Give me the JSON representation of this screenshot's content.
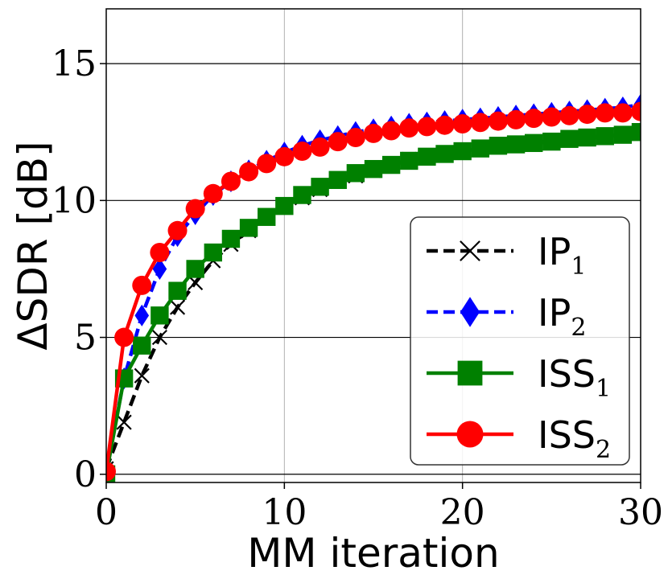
{
  "chart_data": {
    "type": "line",
    "xlabel": "MM iteration",
    "ylabel": "ΔSDR [dB]",
    "xlim": [
      0,
      30
    ],
    "ylim": [
      -0.3,
      17
    ],
    "xticks": [
      0,
      10,
      20,
      30
    ],
    "yticks": [
      0,
      5,
      10,
      15
    ],
    "legend_position": "lower-right",
    "x": [
      0,
      1,
      2,
      3,
      4,
      5,
      6,
      7,
      8,
      9,
      10,
      11,
      12,
      13,
      14,
      15,
      16,
      17,
      18,
      19,
      20,
      21,
      22,
      23,
      24,
      25,
      26,
      27,
      28,
      29,
      30
    ],
    "series": [
      {
        "name": "IP",
        "subscript": "1",
        "color": "#000000",
        "dash": "dashed",
        "marker": "x",
        "values": [
          0.2,
          1.9,
          3.6,
          5.0,
          6.1,
          7.0,
          7.8,
          8.4,
          8.9,
          9.4,
          9.8,
          10.1,
          10.4,
          10.7,
          10.9,
          11.1,
          11.3,
          11.5,
          11.6,
          11.7,
          11.8,
          11.9,
          12.0,
          12.05,
          12.1,
          12.2,
          12.25,
          12.3,
          12.35,
          12.4,
          12.45
        ]
      },
      {
        "name": "IP",
        "subscript": "2",
        "color": "#0000ff",
        "dash": "dashed",
        "marker": "diamond",
        "values": [
          0.1,
          3.5,
          5.8,
          7.5,
          8.7,
          9.5,
          10.2,
          10.7,
          11.1,
          11.45,
          11.75,
          12.0,
          12.2,
          12.35,
          12.5,
          12.6,
          12.7,
          12.8,
          12.85,
          12.9,
          12.95,
          13.0,
          13.05,
          13.1,
          13.15,
          13.2,
          13.25,
          13.3,
          13.35,
          13.4,
          13.5
        ]
      },
      {
        "name": "ISS",
        "subscript": "1",
        "color": "#008000",
        "dash": "solid",
        "marker": "square",
        "values": [
          0.0,
          3.5,
          4.7,
          5.8,
          6.7,
          7.5,
          8.1,
          8.6,
          9.0,
          9.4,
          9.8,
          10.2,
          10.5,
          10.75,
          11.0,
          11.15,
          11.3,
          11.45,
          11.6,
          11.7,
          11.8,
          11.9,
          12.0,
          12.05,
          12.1,
          12.15,
          12.25,
          12.3,
          12.35,
          12.4,
          12.5
        ]
      },
      {
        "name": "ISS",
        "subscript": "2",
        "color": "#ff0000",
        "dash": "solid",
        "marker": "circle",
        "values": [
          0.1,
          5.0,
          6.9,
          8.1,
          8.9,
          9.7,
          10.25,
          10.7,
          11.05,
          11.35,
          11.6,
          11.8,
          11.95,
          12.15,
          12.3,
          12.45,
          12.55,
          12.65,
          12.7,
          12.75,
          12.8,
          12.85,
          12.9,
          12.95,
          13.0,
          13.05,
          13.1,
          13.15,
          13.2,
          13.2,
          13.25
        ]
      }
    ]
  }
}
